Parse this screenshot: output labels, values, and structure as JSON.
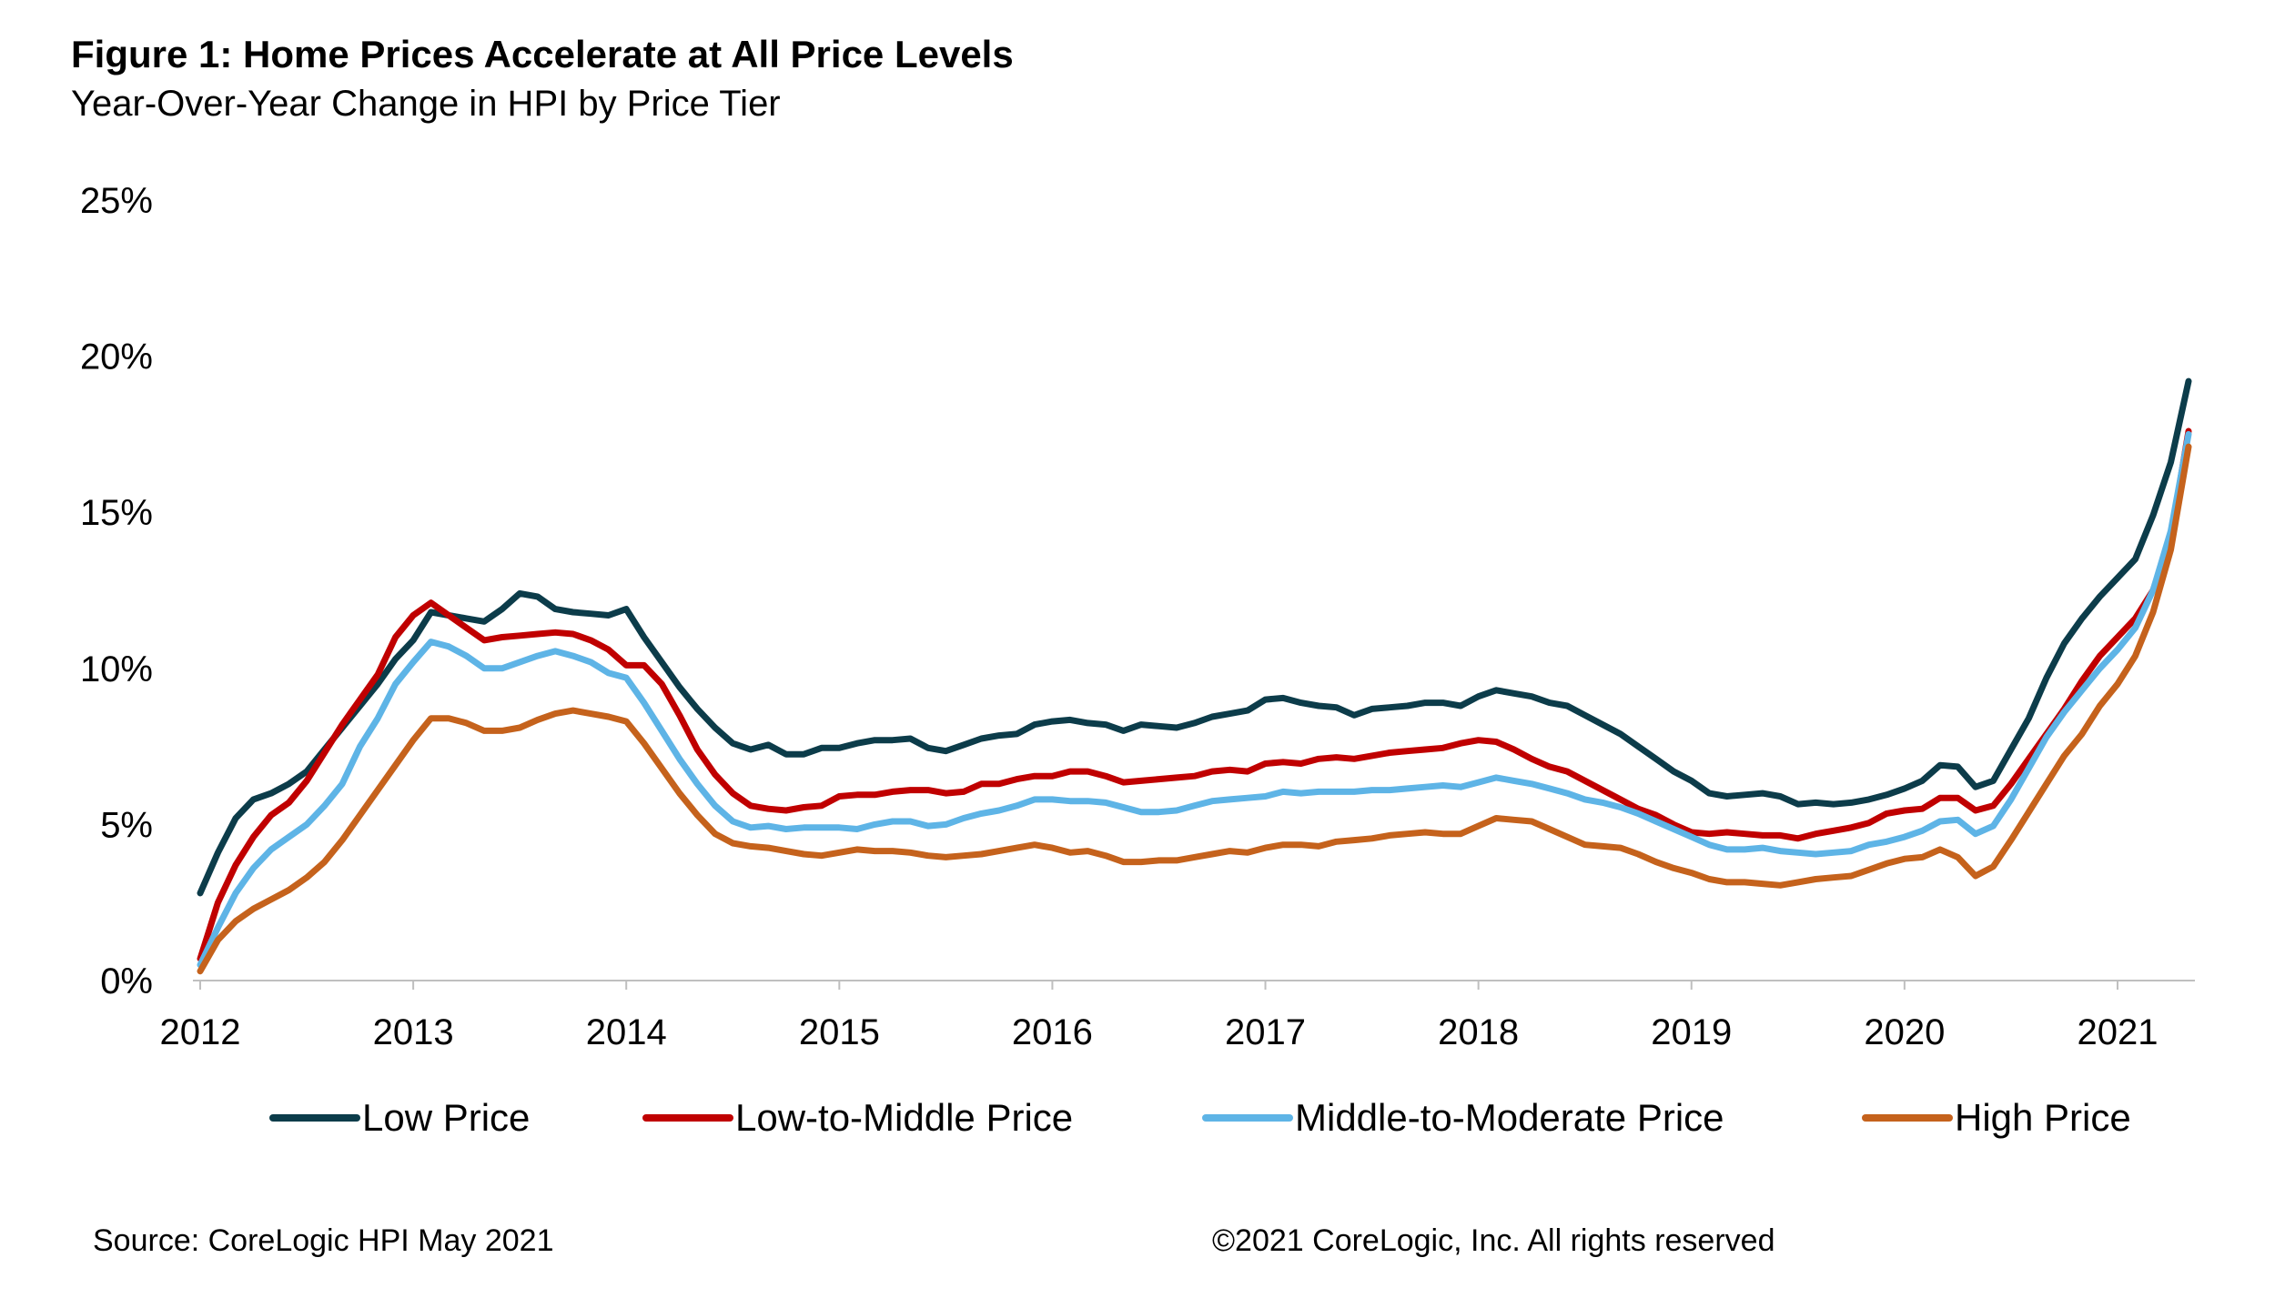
{
  "header": {
    "title": "Figure 1: Home Prices Accelerate at All Price Levels",
    "subtitle": "Year-Over-Year Change in HPI by Price Tier"
  },
  "footer": {
    "source": "Source: CoreLogic HPI May 2021",
    "copyright": "©2021 CoreLogic, Inc. All rights reserved"
  },
  "chart_data": {
    "type": "line",
    "title": "Figure 1: Home Prices Accelerate at All Price Levels",
    "subtitle": "Year-Over-Year Change in HPI by Price Tier",
    "xlabel": "",
    "ylabel": "",
    "x_tick_labels": [
      "2012",
      "2013",
      "2014",
      "2015",
      "2016",
      "2017",
      "2018",
      "2019",
      "2020",
      "2021"
    ],
    "y_tick_labels": [
      "0%",
      "5%",
      "10%",
      "15%",
      "20%",
      "25%"
    ],
    "y_ticks": [
      0,
      5,
      10,
      15,
      20,
      25
    ],
    "ylim": [
      0,
      25
    ],
    "xlim": [
      "2012-01",
      "2021-05"
    ],
    "grid": false,
    "legend_position": "bottom",
    "months": [
      "2012-01",
      "2012-02",
      "2012-03",
      "2012-04",
      "2012-05",
      "2012-06",
      "2012-07",
      "2012-08",
      "2012-09",
      "2012-10",
      "2012-11",
      "2012-12",
      "2013-01",
      "2013-02",
      "2013-03",
      "2013-04",
      "2013-05",
      "2013-06",
      "2013-07",
      "2013-08",
      "2013-09",
      "2013-10",
      "2013-11",
      "2013-12",
      "2014-01",
      "2014-02",
      "2014-03",
      "2014-04",
      "2014-05",
      "2014-06",
      "2014-07",
      "2014-08",
      "2014-09",
      "2014-10",
      "2014-11",
      "2014-12",
      "2015-01",
      "2015-02",
      "2015-03",
      "2015-04",
      "2015-05",
      "2015-06",
      "2015-07",
      "2015-08",
      "2015-09",
      "2015-10",
      "2015-11",
      "2015-12",
      "2016-01",
      "2016-02",
      "2016-03",
      "2016-04",
      "2016-05",
      "2016-06",
      "2016-07",
      "2016-08",
      "2016-09",
      "2016-10",
      "2016-11",
      "2016-12",
      "2017-01",
      "2017-02",
      "2017-03",
      "2017-04",
      "2017-05",
      "2017-06",
      "2017-07",
      "2017-08",
      "2017-09",
      "2017-10",
      "2017-11",
      "2017-12",
      "2018-01",
      "2018-02",
      "2018-03",
      "2018-04",
      "2018-05",
      "2018-06",
      "2018-07",
      "2018-08",
      "2018-09",
      "2018-10",
      "2018-11",
      "2018-12",
      "2019-01",
      "2019-02",
      "2019-03",
      "2019-04",
      "2019-05",
      "2019-06",
      "2019-07",
      "2019-08",
      "2019-09",
      "2019-10",
      "2019-11",
      "2019-12",
      "2020-01",
      "2020-02",
      "2020-03",
      "2020-04",
      "2020-05",
      "2020-06",
      "2020-07",
      "2020-08",
      "2020-09",
      "2020-10",
      "2020-11",
      "2020-12",
      "2021-01",
      "2021-02",
      "2021-03",
      "2021-04",
      "2021-05"
    ],
    "series": [
      {
        "name": "Low Price",
        "color": "#0c3c4a",
        "values": [
          2.8,
          4.1,
          5.2,
          5.8,
          6.0,
          6.3,
          6.7,
          7.4,
          8.1,
          8.8,
          9.5,
          10.3,
          10.9,
          11.8,
          11.7,
          11.6,
          11.5,
          11.9,
          12.4,
          12.3,
          11.9,
          11.8,
          11.75,
          11.7,
          11.9,
          11.0,
          10.2,
          9.4,
          8.7,
          8.1,
          7.6,
          7.4,
          7.55,
          7.25,
          7.25,
          7.45,
          7.45,
          7.6,
          7.7,
          7.7,
          7.75,
          7.45,
          7.35,
          7.55,
          7.75,
          7.85,
          7.9,
          8.2,
          8.3,
          8.35,
          8.25,
          8.2,
          8.0,
          8.2,
          8.15,
          8.1,
          8.25,
          8.45,
          8.55,
          8.65,
          9.0,
          9.05,
          8.9,
          8.8,
          8.75,
          8.5,
          8.7,
          8.75,
          8.8,
          8.9,
          8.9,
          8.8,
          9.1,
          9.3,
          9.2,
          9.1,
          8.9,
          8.8,
          8.5,
          8.2,
          7.9,
          7.5,
          7.1,
          6.7,
          6.4,
          6.0,
          5.9,
          5.95,
          6.0,
          5.9,
          5.65,
          5.7,
          5.65,
          5.7,
          5.8,
          5.95,
          6.15,
          6.4,
          6.9,
          6.85,
          6.2,
          6.4,
          7.4,
          8.4,
          9.7,
          10.8,
          11.6,
          12.3,
          12.9,
          13.5,
          14.9,
          16.6,
          19.2
        ]
      },
      {
        "name": "Low-to-Middle Price",
        "color": "#c00000",
        "values": [
          0.7,
          2.5,
          3.7,
          4.6,
          5.3,
          5.7,
          6.4,
          7.3,
          8.2,
          9.0,
          9.8,
          11.0,
          11.7,
          12.1,
          11.7,
          11.3,
          10.9,
          11.0,
          11.05,
          11.1,
          11.15,
          11.1,
          10.9,
          10.6,
          10.1,
          10.1,
          9.5,
          8.5,
          7.4,
          6.6,
          6.0,
          5.6,
          5.5,
          5.45,
          5.55,
          5.6,
          5.9,
          5.95,
          5.95,
          6.05,
          6.1,
          6.1,
          6.0,
          6.05,
          6.3,
          6.3,
          6.45,
          6.55,
          6.55,
          6.7,
          6.7,
          6.55,
          6.35,
          6.4,
          6.45,
          6.5,
          6.55,
          6.7,
          6.75,
          6.7,
          6.95,
          7.0,
          6.95,
          7.1,
          7.15,
          7.1,
          7.2,
          7.3,
          7.35,
          7.4,
          7.45,
          7.6,
          7.7,
          7.65,
          7.4,
          7.1,
          6.85,
          6.7,
          6.4,
          6.1,
          5.8,
          5.5,
          5.3,
          5.0,
          4.75,
          4.7,
          4.75,
          4.7,
          4.65,
          4.65,
          4.55,
          4.7,
          4.8,
          4.9,
          5.05,
          5.35,
          5.45,
          5.5,
          5.85,
          5.85,
          5.45,
          5.6,
          6.3,
          7.1,
          7.9,
          8.7,
          9.6,
          10.4,
          11.0,
          11.6,
          12.5,
          14.2,
          17.6
        ]
      },
      {
        "name": "Middle-to-Moderate Price",
        "color": "#5eb4e6",
        "values": [
          0.5,
          1.7,
          2.8,
          3.6,
          4.2,
          4.6,
          5.0,
          5.6,
          6.3,
          7.5,
          8.4,
          9.5,
          10.2,
          10.85,
          10.7,
          10.4,
          10.0,
          10.0,
          10.2,
          10.4,
          10.55,
          10.4,
          10.2,
          9.85,
          9.7,
          8.9,
          8.0,
          7.1,
          6.3,
          5.6,
          5.1,
          4.9,
          4.95,
          4.85,
          4.9,
          4.9,
          4.9,
          4.85,
          5.0,
          5.1,
          5.1,
          4.95,
          5.0,
          5.2,
          5.35,
          5.45,
          5.6,
          5.8,
          5.8,
          5.75,
          5.75,
          5.7,
          5.55,
          5.4,
          5.4,
          5.45,
          5.6,
          5.75,
          5.8,
          5.85,
          5.9,
          6.05,
          6.0,
          6.05,
          6.05,
          6.05,
          6.1,
          6.1,
          6.15,
          6.2,
          6.25,
          6.2,
          6.35,
          6.5,
          6.4,
          6.3,
          6.15,
          6.0,
          5.8,
          5.7,
          5.55,
          5.35,
          5.1,
          4.85,
          4.6,
          4.35,
          4.2,
          4.2,
          4.25,
          4.15,
          4.1,
          4.05,
          4.1,
          4.15,
          4.35,
          4.45,
          4.6,
          4.8,
          5.1,
          5.15,
          4.7,
          4.95,
          5.8,
          6.8,
          7.8,
          8.6,
          9.3,
          10.0,
          10.6,
          11.3,
          12.5,
          14.4,
          17.5
        ]
      },
      {
        "name": "High Price",
        "color": "#c5621c",
        "values": [
          0.3,
          1.3,
          1.9,
          2.3,
          2.6,
          2.9,
          3.3,
          3.8,
          4.5,
          5.3,
          6.1,
          6.9,
          7.7,
          8.4,
          8.4,
          8.25,
          8.0,
          8.0,
          8.1,
          8.35,
          8.55,
          8.65,
          8.55,
          8.45,
          8.3,
          7.6,
          6.8,
          6.0,
          5.3,
          4.7,
          4.4,
          4.3,
          4.25,
          4.15,
          4.05,
          4.0,
          4.1,
          4.2,
          4.15,
          4.15,
          4.1,
          4.0,
          3.95,
          4.0,
          4.05,
          4.15,
          4.25,
          4.35,
          4.25,
          4.1,
          4.15,
          4.0,
          3.8,
          3.8,
          3.85,
          3.85,
          3.95,
          4.05,
          4.15,
          4.1,
          4.25,
          4.35,
          4.35,
          4.3,
          4.45,
          4.5,
          4.55,
          4.65,
          4.7,
          4.75,
          4.7,
          4.7,
          4.95,
          5.2,
          5.15,
          5.1,
          4.85,
          4.6,
          4.35,
          4.3,
          4.25,
          4.05,
          3.8,
          3.6,
          3.45,
          3.25,
          3.15,
          3.15,
          3.1,
          3.05,
          3.15,
          3.25,
          3.3,
          3.35,
          3.55,
          3.75,
          3.9,
          3.95,
          4.2,
          3.95,
          3.35,
          3.65,
          4.5,
          5.4,
          6.3,
          7.2,
          7.9,
          8.8,
          9.5,
          10.4,
          11.8,
          13.8,
          17.1
        ]
      }
    ]
  }
}
